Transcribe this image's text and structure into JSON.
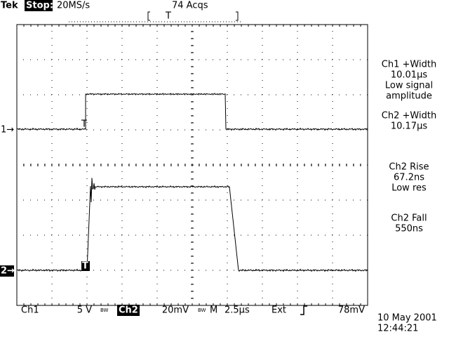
{
  "header": {
    "brand": "Tek",
    "status": "Stop:",
    "sample_rate": "20MS/s",
    "acquisitions": "74 Acqs",
    "trigger_position": "T"
  },
  "markers": {
    "ch1": "1→",
    "ch2": "2→",
    "ch1_trigger": "T",
    "ch2_trigger": "T"
  },
  "measurements": [
    {
      "lines": [
        "Ch1 +Width",
        "10.01µs",
        "Low signal",
        "amplitude"
      ]
    },
    {
      "lines": [
        "Ch2 +Width",
        "10.17µs"
      ]
    },
    {
      "lines": [
        "Ch2 Rise",
        "67.2ns",
        "Low res"
      ]
    },
    {
      "lines": [
        "Ch2 Fall",
        "550ns"
      ]
    }
  ],
  "footer": {
    "ch1": "Ch1",
    "ch1_scale": "5 V",
    "bw1": "BW",
    "ch2": "Ch2",
    "ch2_scale": "20mV",
    "bw2": "BW",
    "timebase_label": "M",
    "timebase": "2.5µs",
    "trigger_source": "Ext",
    "trigger_level": "78mV"
  },
  "timestamp": {
    "date": "10 May 2001",
    "time": "12:44:21"
  }
}
